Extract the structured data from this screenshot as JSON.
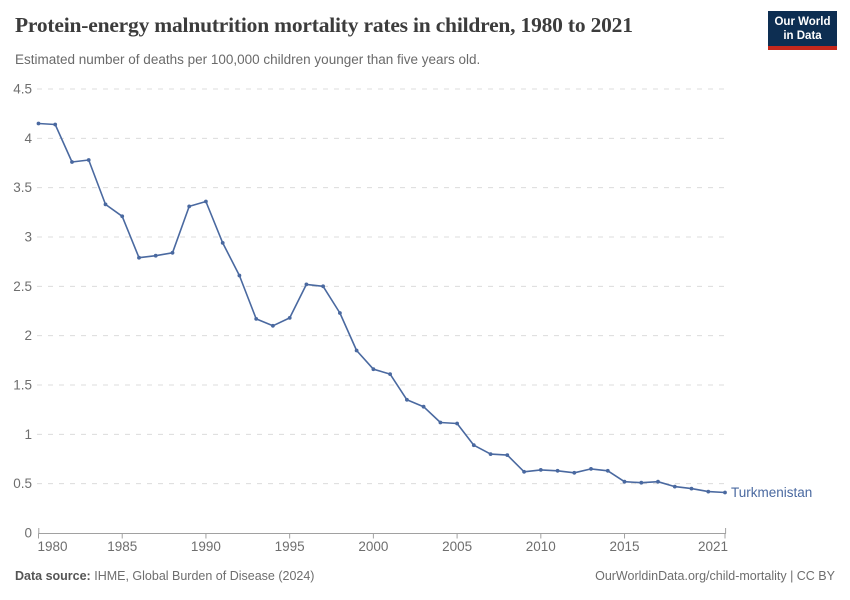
{
  "logo": {
    "line1": "Our World",
    "line2": "in Data"
  },
  "chart_data": {
    "type": "line",
    "title": "Protein-energy malnutrition mortality rates in children, 1980 to 2021",
    "subtitle": "Estimated number of deaths per 100,000 children younger than five years old.",
    "x": [
      1980,
      1981,
      1982,
      1983,
      1984,
      1985,
      1986,
      1987,
      1988,
      1989,
      1990,
      1991,
      1992,
      1993,
      1994,
      1995,
      1996,
      1997,
      1998,
      1999,
      2000,
      2001,
      2002,
      2003,
      2004,
      2005,
      2006,
      2007,
      2008,
      2009,
      2010,
      2011,
      2012,
      2013,
      2014,
      2015,
      2016,
      2017,
      2018,
      2019,
      2020,
      2021
    ],
    "series": [
      {
        "name": "Turkmenistan",
        "color": "#4a69a0",
        "values": [
          4.15,
          4.14,
          3.76,
          3.78,
          3.33,
          3.21,
          2.79,
          2.81,
          2.84,
          3.31,
          3.36,
          2.94,
          2.61,
          2.17,
          2.1,
          2.18,
          2.52,
          2.5,
          2.23,
          1.85,
          1.66,
          1.61,
          1.35,
          1.28,
          1.12,
          1.11,
          0.89,
          0.8,
          0.79,
          0.62,
          0.64,
          0.63,
          0.61,
          0.65,
          0.63,
          0.52,
          0.51,
          0.52,
          0.47,
          0.45,
          0.42,
          0.41
        ]
      }
    ],
    "xlabel": "",
    "ylabel": "",
    "ylim": [
      0,
      4.5
    ],
    "yticks": [
      0,
      0.5,
      1,
      1.5,
      2,
      2.5,
      3,
      3.5,
      4,
      4.5
    ],
    "xticks": [
      1980,
      1985,
      1990,
      1995,
      2000,
      2005,
      2010,
      2015,
      2021
    ],
    "grid": true,
    "legend_position": "line-end-label"
  },
  "footer": {
    "source_label": "Data source:",
    "source_text": "IHME, Global Burden of Disease (2024)",
    "license_text": "OurWorldinData.org/child-mortality | CC BY"
  },
  "colors": {
    "line": "#4a69a0",
    "grid": "#dcdcdc",
    "axis": "#a1a1a1",
    "tick_text": "#6e6e6e",
    "title_text": "#3c3c3c",
    "subtitle_text": "#6a6a6a",
    "logo_bg": "#0d2e52",
    "logo_stripe": "#c5281c"
  }
}
